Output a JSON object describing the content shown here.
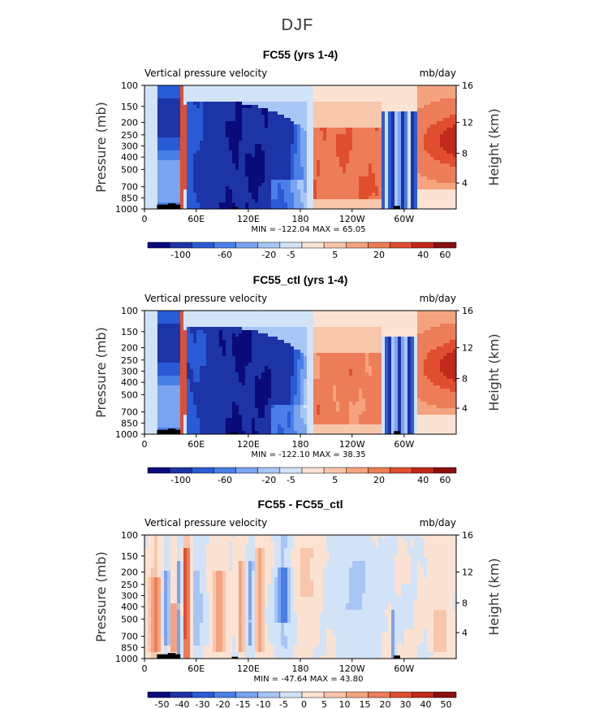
{
  "figure": {
    "title": "DJF"
  },
  "colors": [
    "#0a0a7a",
    "#1d34a6",
    "#2a5bd6",
    "#4a7fe8",
    "#7aa3f0",
    "#a8c6f5",
    "#d2e3f8",
    "#fbe2d2",
    "#f8c6ab",
    "#f3a47f",
    "#ec7d58",
    "#e14e2f",
    "#c2281b",
    "#8a0f0f"
  ],
  "chart_data": [
    {
      "type": "heatmap",
      "title": "FC55 (yrs 1-4)",
      "variable": "Vertical pressure velocity",
      "units": "mb/day",
      "ylabel": "Pressure (mb)",
      "y2label": "Height (km)",
      "x_ticks": [
        "0",
        "60E",
        "120E",
        "180",
        "120W",
        "60W"
      ],
      "y_ticks": [
        "100",
        "150",
        "200",
        "250",
        "300",
        "400",
        "500",
        "700",
        "850",
        "1000"
      ],
      "y2_ticks": [
        "16",
        "12",
        "8",
        "4"
      ],
      "stats": "MIN = -122.04   MAX =  65.05",
      "colorbar_labels": [
        "-100",
        "-60",
        "-20",
        "-5",
        "5",
        "20",
        "40",
        "60"
      ]
    },
    {
      "type": "heatmap",
      "title": "FC55_ctl (yrs 1-4)",
      "variable": "Vertical pressure velocity",
      "units": "mb/day",
      "ylabel": "Pressure (mb)",
      "y2label": "Height (km)",
      "x_ticks": [
        "0",
        "60E",
        "120E",
        "180",
        "120W",
        "60W"
      ],
      "y_ticks": [
        "100",
        "150",
        "200",
        "250",
        "300",
        "400",
        "500",
        "700",
        "850",
        "1000"
      ],
      "y2_ticks": [
        "16",
        "12",
        "8",
        "4"
      ],
      "stats": "MIN = -122.10   MAX =  38.35",
      "colorbar_labels": [
        "-100",
        "-60",
        "-20",
        "-5",
        "5",
        "20",
        "40",
        "60"
      ]
    },
    {
      "type": "heatmap",
      "title": "FC55 - FC55_ctl",
      "variable": "Vertical pressure velocity",
      "units": "mb/day",
      "ylabel": "Pressure (mb)",
      "y2label": "Height (km)",
      "x_ticks": [
        "0",
        "60E",
        "120E",
        "180",
        "120W",
        "60W"
      ],
      "y_ticks": [
        "100",
        "150",
        "200",
        "250",
        "300",
        "400",
        "500",
        "700",
        "850",
        "1000"
      ],
      "y2_ticks": [
        "16",
        "12",
        "8",
        "4"
      ],
      "stats": "MIN = -47.64   MAX =  43.80",
      "colorbar_labels": [
        "-50",
        "-40",
        "-30",
        "-20",
        "-15",
        "-10",
        "-5",
        "0",
        "5",
        "10",
        "15",
        "20",
        "30",
        "40",
        "50"
      ]
    }
  ]
}
